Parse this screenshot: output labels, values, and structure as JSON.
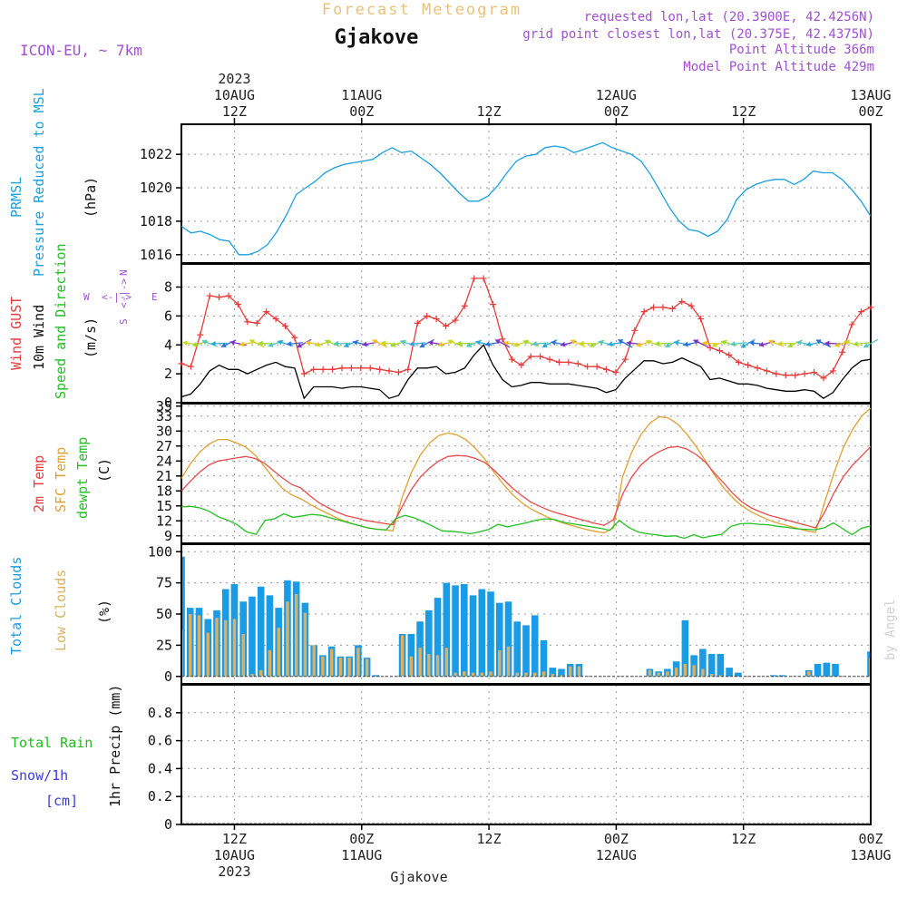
{
  "header": {
    "top_title": "Forecast Meteogram",
    "location": "Gjakove",
    "model": "ICON-EU, ~ 7km",
    "requested": "requested lon,lat (20.3900E, 42.4256N)",
    "grid_point": "grid point closest lon,lat (20.375E, 42.4375N)",
    "point_altitude": "Point Altitude 366m",
    "model_altitude": "Model Point Altitude 429m",
    "footer_location": "Gjakove",
    "credit": "by Angel"
  },
  "colors": {
    "pressure": "#1a9fe0",
    "gust": "#e83a3a",
    "wind": "#000000",
    "t2m": "#e84a4a",
    "sfc": "#e0a030",
    "dewpt": "#22c022",
    "total_clouds": "#1a9be6",
    "low_clouds": "#dcb060",
    "title": "#e8c27a",
    "meta": "#a050d0",
    "rain": "#22bb22",
    "snow": "#3a3ae0"
  },
  "time_axis": {
    "top": [
      {
        "line1": "2023",
        "line2": "10AUG",
        "line3": "12Z"
      },
      {
        "line1": "",
        "line2": "11AUG",
        "line3": "00Z"
      },
      {
        "line1": "",
        "line2": "",
        "line3": "12Z"
      },
      {
        "line1": "",
        "line2": "12AUG",
        "line3": "00Z"
      },
      {
        "line1": "",
        "line2": "",
        "line3": "12Z"
      },
      {
        "line1": "",
        "line2": "13AUG",
        "line3": "00Z"
      }
    ],
    "bottom": [
      {
        "line1": "12Z",
        "line2": "10AUG",
        "line3": "2023"
      },
      {
        "line1": "00Z",
        "line2": "11AUG",
        "line3": ""
      },
      {
        "line1": "12Z",
        "line2": "",
        "line3": ""
      },
      {
        "line1": "00Z",
        "line2": "12AUG",
        "line3": ""
      },
      {
        "line1": "12Z",
        "line2": "",
        "line3": ""
      },
      {
        "line1": "00Z",
        "line2": "13AUG",
        "line3": ""
      }
    ]
  },
  "panels": {
    "pressure": {
      "label1": "PRMSL",
      "label2": "Pressure Reduced to MSL",
      "unit": "(hPa)"
    },
    "wind": {
      "label1": "Wind GUST",
      "label2": "10m Wind",
      "label3": "Speed and Direction",
      "unit": "(m/s)",
      "compass_n": "N",
      "compass_s": "S",
      "compass_w": "W",
      "compass_e": "E",
      "compass_mid": "<-|->"
    },
    "temp": {
      "label1": "2m Temp",
      "label2": "SFC Temp",
      "label3": "dewpt Temp",
      "unit": "(C)"
    },
    "clouds": {
      "label1": "Total Clouds",
      "label2": "Low Clouds",
      "unit": "(%)"
    },
    "precip": {
      "label1": "Total  Rain",
      "label2": "Snow/1h",
      "label3": "[cm]",
      "unit": "1hr Precip (mm)"
    }
  },
  "chart_data": {
    "type": "line",
    "x_start_hour": 7,
    "x_end_hour": 72,
    "hours_note": "hours since 2023-08-10 00Z",
    "pressure": {
      "ylim": [
        1015.5,
        1023.8
      ],
      "yticks": [
        1016,
        1018,
        1020,
        1022
      ],
      "values": [
        1017.7,
        1017.3,
        1017.4,
        1017.2,
        1016.9,
        1016.8,
        1016.0,
        1016.0,
        1016.2,
        1016.6,
        1017.4,
        1018.4,
        1019.6,
        1020.0,
        1020.4,
        1020.9,
        1021.2,
        1021.4,
        1021.5,
        1021.6,
        1021.7,
        1022.1,
        1022.4,
        1022.1,
        1022.2,
        1021.8,
        1021.4,
        1020.9,
        1020.3,
        1019.7,
        1019.2,
        1019.2,
        1019.5,
        1020.1,
        1020.9,
        1021.6,
        1021.9,
        1022.0,
        1022.4,
        1022.5,
        1022.4,
        1022.1,
        1022.3,
        1022.5,
        1022.7,
        1022.4,
        1022.2,
        1022.0,
        1021.6,
        1020.8,
        1019.8,
        1018.8,
        1018.0,
        1017.5,
        1017.4,
        1017.1,
        1017.4,
        1018.1,
        1019.3,
        1019.9,
        1020.2,
        1020.4,
        1020.5,
        1020.5,
        1020.2,
        1020.5,
        1021.0,
        1020.9,
        1020.9,
        1020.5,
        1019.9,
        1019.2,
        1018.3
      ]
    },
    "wind": {
      "ylim": [
        0,
        9.6
      ],
      "yticks": [
        0,
        2,
        4,
        6,
        8
      ],
      "gust": [
        2.7,
        2.5,
        4.7,
        7.4,
        7.3,
        7.4,
        6.8,
        5.6,
        5.5,
        6.3,
        5.8,
        5.3,
        4.5,
        2.0,
        2.3,
        2.3,
        2.3,
        2.4,
        2.4,
        2.4,
        2.4,
        2.3,
        2.2,
        2.1,
        2.3,
        5.5,
        6.0,
        5.8,
        5.3,
        5.7,
        6.7,
        8.6,
        8.6,
        6.8,
        4.4,
        3.0,
        2.6,
        3.2,
        3.2,
        3.0,
        2.8,
        2.8,
        2.7,
        2.5,
        2.5,
        2.3,
        2.1,
        3.0,
        5.0,
        6.3,
        6.6,
        6.6,
        6.5,
        7.0,
        6.7,
        5.8,
        3.8,
        3.6,
        3.3,
        2.8,
        2.6,
        2.4,
        2.2,
        2.0,
        1.9,
        1.9,
        2.0,
        2.1,
        1.7,
        2.2,
        3.5,
        5.4,
        6.3,
        6.6
      ],
      "wind": [
        0.4,
        0.6,
        1.3,
        2.2,
        2.6,
        2.3,
        2.3,
        2.0,
        2.3,
        2.6,
        2.8,
        2.5,
        2.4,
        0.3,
        1.1,
        1.1,
        1.1,
        1.0,
        1.1,
        1.1,
        1.0,
        0.9,
        0.3,
        0.5,
        1.6,
        2.4,
        2.4,
        2.5,
        2.0,
        2.1,
        2.4,
        3.3,
        4.0,
        2.6,
        1.6,
        1.1,
        1.2,
        1.4,
        1.4,
        1.3,
        1.3,
        1.3,
        1.2,
        1.1,
        1.0,
        0.7,
        0.9,
        1.7,
        2.3,
        2.9,
        2.9,
        2.7,
        2.8,
        3.1,
        2.8,
        2.5,
        1.6,
        1.7,
        1.5,
        1.3,
        1.3,
        1.2,
        1.0,
        0.9,
        0.8,
        0.8,
        0.9,
        0.8,
        0.3,
        0.7,
        1.6,
        2.4,
        2.9,
        3.0
      ]
    },
    "temp": {
      "ylim": [
        7.5,
        35.5
      ],
      "yticks": [
        9,
        12,
        15,
        18,
        21,
        24,
        27,
        30,
        33,
        35
      ],
      "t2m": [
        18.0,
        20.0,
        21.8,
        23.2,
        24.0,
        24.3,
        24.6,
        24.9,
        24.5,
        23.6,
        22.1,
        20.6,
        19.3,
        18.6,
        17.0,
        15.6,
        14.6,
        13.7,
        13.0,
        12.6,
        12.1,
        11.8,
        11.5,
        11.2,
        14.8,
        18.2,
        20.8,
        22.6,
        24.0,
        24.9,
        25.1,
        25.0,
        24.5,
        23.7,
        22.2,
        20.4,
        18.6,
        17.1,
        15.8,
        14.9,
        14.1,
        13.5,
        13.0,
        12.5,
        12.0,
        11.5,
        11.1,
        12.2,
        17.3,
        20.8,
        23.2,
        24.8,
        25.9,
        26.7,
        26.9,
        26.4,
        25.3,
        23.8,
        21.6,
        19.6,
        17.5,
        15.8,
        14.6,
        13.8,
        13.1,
        12.6,
        12.1,
        11.6,
        11.1,
        10.6,
        13.8,
        17.6,
        20.8,
        23.1,
        25.0,
        26.9
      ],
      "sfc": [
        20.5,
        23.5,
        25.8,
        27.4,
        28.3,
        28.3,
        27.6,
        26.8,
        25.2,
        23.0,
        20.6,
        18.5,
        17.2,
        16.4,
        15.3,
        14.3,
        13.4,
        12.5,
        11.8,
        11.2,
        10.7,
        10.4,
        10.2,
        10.0,
        16.6,
        21.6,
        25.2,
        27.6,
        29.1,
        29.6,
        29.2,
        28.2,
        26.5,
        24.4,
        21.8,
        19.4,
        17.3,
        15.7,
        14.4,
        13.5,
        12.6,
        11.9,
        11.3,
        10.8,
        10.3,
        9.9,
        9.6,
        10.6,
        20.8,
        25.8,
        29.3,
        31.6,
        32.9,
        32.6,
        31.4,
        29.4,
        26.9,
        24.1,
        21.2,
        18.6,
        16.6,
        15.0,
        13.8,
        12.9,
        12.1,
        11.5,
        11.0,
        10.5,
        10.0,
        9.7,
        15.8,
        21.6,
        26.6,
        30.2,
        33.0,
        34.6
      ],
      "dewpt": [
        14.8,
        14.9,
        14.6,
        13.9,
        12.8,
        12.1,
        11.2,
        9.8,
        9.3,
        12.1,
        12.4,
        13.4,
        12.7,
        13.0,
        13.3,
        13.1,
        12.6,
        12.1,
        11.6,
        11.1,
        10.6,
        10.3,
        10.2,
        12.4,
        13.1,
        12.6,
        11.8,
        10.9,
        10.0,
        9.9,
        9.7,
        9.4,
        9.8,
        10.3,
        11.3,
        10.8,
        11.2,
        11.6,
        12.1,
        12.4,
        12.3,
        11.7,
        11.4,
        11.1,
        10.8,
        10.5,
        10.1,
        12.1,
        10.7,
        9.8,
        9.4,
        9.2,
        8.9,
        9.0,
        8.5,
        9.2,
        8.6,
        9.0,
        9.3,
        10.9,
        11.4,
        11.5,
        11.3,
        11.2,
        10.9,
        10.7,
        10.4,
        10.3,
        10.2,
        10.6,
        11.6,
        10.4,
        9.2,
        10.5,
        11.0
      ]
    },
    "clouds": {
      "ylim": [
        -6,
        106
      ],
      "yticks": [
        0,
        25,
        50,
        75,
        100
      ],
      "total": [
        96,
        55,
        55,
        46,
        53,
        70,
        74,
        60,
        64,
        72,
        65,
        55,
        77,
        76,
        59,
        25,
        17,
        24,
        16,
        16,
        25,
        15,
        1,
        0,
        0,
        34,
        34,
        44,
        53,
        63,
        75,
        73,
        74,
        65,
        70,
        68,
        59,
        60,
        44,
        41,
        49,
        29,
        7,
        6,
        10,
        10,
        0,
        0,
        0,
        0,
        0,
        0,
        0,
        6,
        4,
        6,
        12,
        45,
        17,
        22,
        18,
        18,
        7,
        3,
        0,
        0,
        0,
        1,
        1,
        0,
        0,
        5,
        10,
        11,
        10,
        0,
        0,
        0,
        20
      ],
      "low": [
        37,
        50,
        49,
        35,
        47,
        45,
        46,
        34,
        2,
        5,
        21,
        39,
        60,
        66,
        51,
        25,
        16,
        22,
        15,
        15,
        23,
        14,
        0,
        0,
        0,
        33,
        16,
        23,
        18,
        17,
        23,
        3,
        4,
        3,
        3,
        4,
        21,
        24,
        3,
        3,
        3,
        4,
        2,
        1,
        8,
        8,
        0,
        0,
        0,
        0,
        0,
        0,
        0,
        5,
        3,
        4,
        7,
        10,
        9,
        6,
        2,
        1,
        0,
        0,
        0,
        0,
        0,
        0,
        0,
        0,
        0,
        4,
        0,
        0,
        0,
        0,
        0,
        0,
        15
      ]
    },
    "precip": {
      "ylim": [
        0,
        1.0
      ],
      "yticks": [
        0,
        0.2,
        0.4,
        0.6,
        0.8
      ],
      "rain": [],
      "snow": []
    }
  }
}
